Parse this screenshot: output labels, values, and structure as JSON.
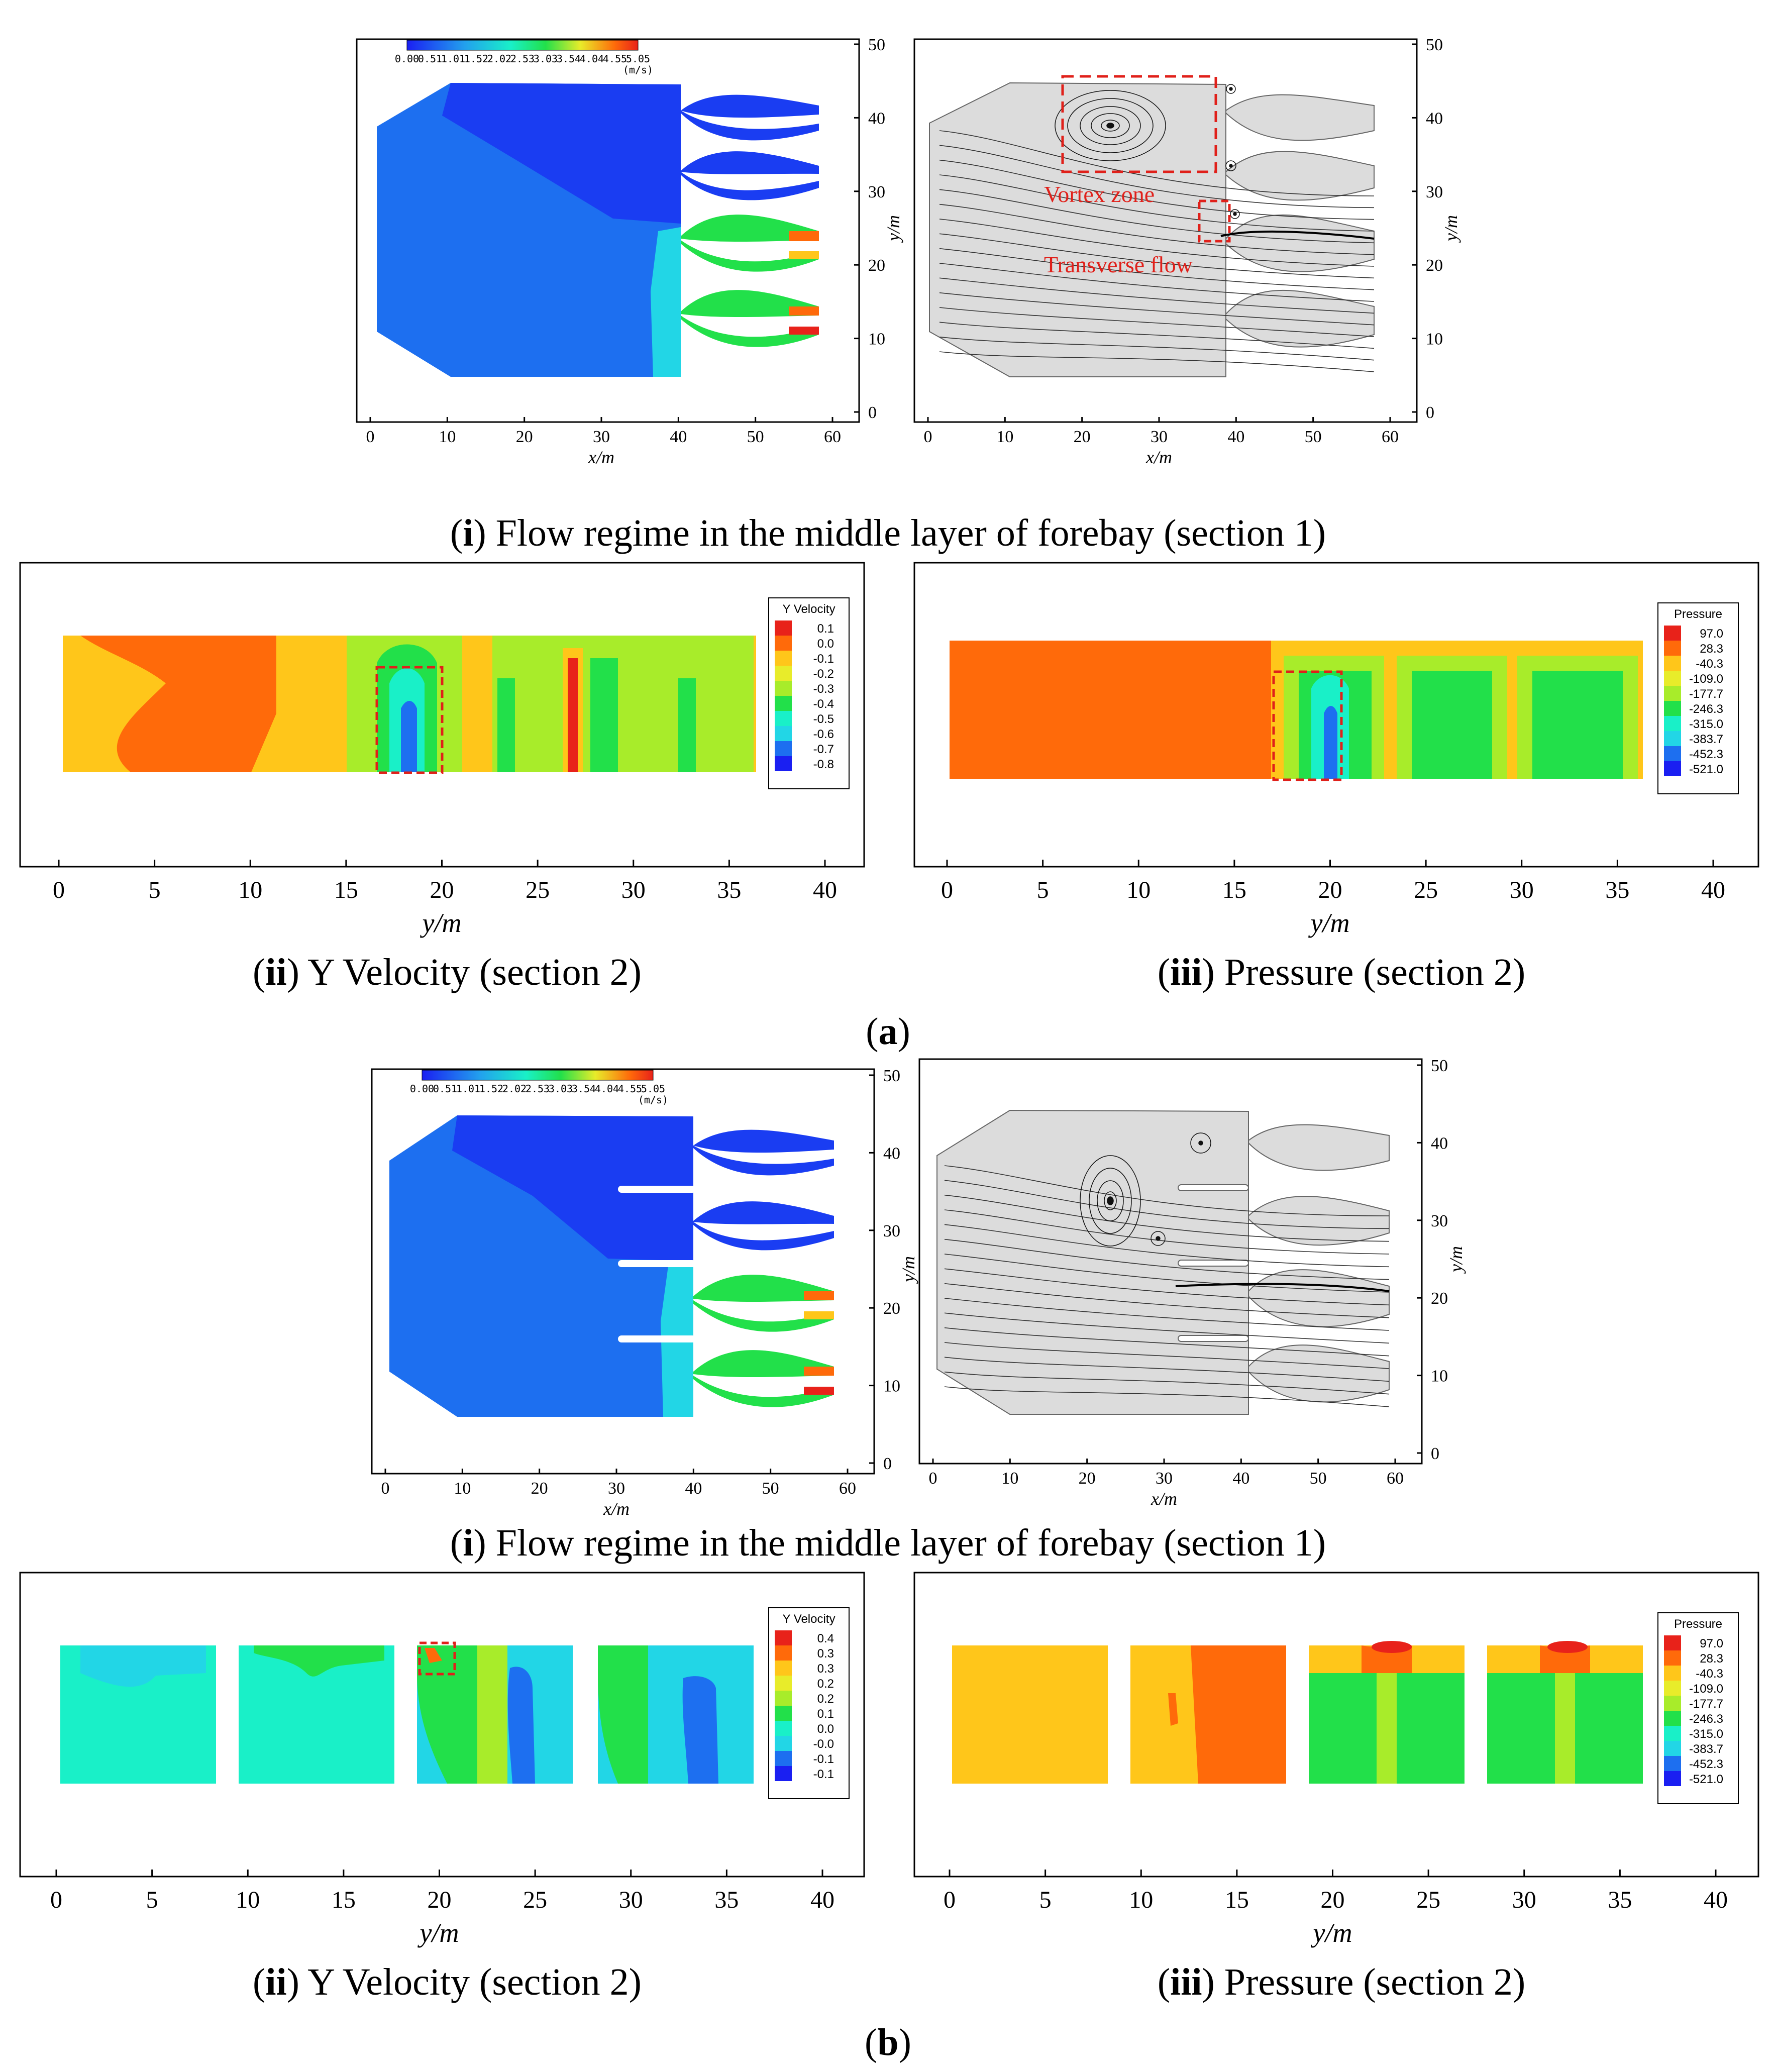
{
  "figure": {
    "a": {
      "label": "a",
      "section1_caption_num": "i",
      "section1_caption_text": "Flow regime in the middle layer of forebay (section 1)",
      "yvel_caption_num": "ii",
      "yvel_caption_text": "Y Velocity (section 2)",
      "pres_caption_num": "iii",
      "pres_caption_text": "Pressure (section 2)",
      "annotations": [
        "Vortex zone",
        "Transverse flow"
      ]
    },
    "b": {
      "label": "b",
      "section1_caption_num": "i",
      "section1_caption_text": "Flow regime in the middle layer of forebay (section 1)",
      "yvel_caption_num": "ii",
      "yvel_caption_text": "Y Velocity (section 2)",
      "pres_caption_num": "iii",
      "pres_caption_text": "Pressure (section 2)"
    }
  },
  "axes": {
    "plan_x_label": "x/m",
    "plan_y_label": "y/m",
    "plan_x_ticks": [
      "0",
      "10",
      "20",
      "30",
      "40",
      "50",
      "60"
    ],
    "plan_y_ticks": [
      "0",
      "10",
      "20",
      "30",
      "40",
      "50"
    ],
    "section_x_label": "y/m",
    "section_x_ticks": [
      "0",
      "5",
      "10",
      "15",
      "20",
      "25",
      "30",
      "35",
      "40"
    ]
  },
  "speed_colorbar": {
    "ticks": [
      "0.00",
      "0.51",
      "1.01",
      "1.52",
      "2.02",
      "2.53",
      "3.03",
      "3.54",
      "4.04",
      "4.55",
      "5.05"
    ],
    "unit": "(m/s)"
  },
  "legends": {
    "a_yvel": {
      "title": "Y Velocity",
      "values": [
        "0.1",
        "0.0",
        "-0.1",
        "-0.2",
        "-0.3",
        "-0.4",
        "-0.5",
        "-0.6",
        "-0.7",
        "-0.8"
      ]
    },
    "a_pres": {
      "title": "Pressure",
      "values": [
        "97.0",
        "28.3",
        "-40.3",
        "-109.0",
        "-177.7",
        "-246.3",
        "-315.0",
        "-383.7",
        "-452.3",
        "-521.0"
      ]
    },
    "b_yvel": {
      "title": "Y Velocity",
      "values": [
        "0.4",
        "0.3",
        "0.3",
        "0.2",
        "0.2",
        "0.1",
        "0.0",
        "-0.0",
        "-0.1",
        "-0.1"
      ]
    },
    "b_pres": {
      "title": "Pressure",
      "values": [
        "97.0",
        "28.3",
        "-40.3",
        "-109.0",
        "-177.7",
        "-246.3",
        "-315.0",
        "-383.7",
        "-452.3",
        "-521.0"
      ]
    }
  },
  "colors": {
    "deep_blue": "#1a3df2",
    "mid_blue": "#1d6ff0",
    "cyan": "#22d6e6",
    "teal": "#19f0c8",
    "green": "#22e04a",
    "lime": "#a8ec2a",
    "yellow": "#ffc61a",
    "orange": "#ff6a0a",
    "red": "#e8221a",
    "stream_bg": "#dcdcdc",
    "annot_red": "#e0201a"
  }
}
